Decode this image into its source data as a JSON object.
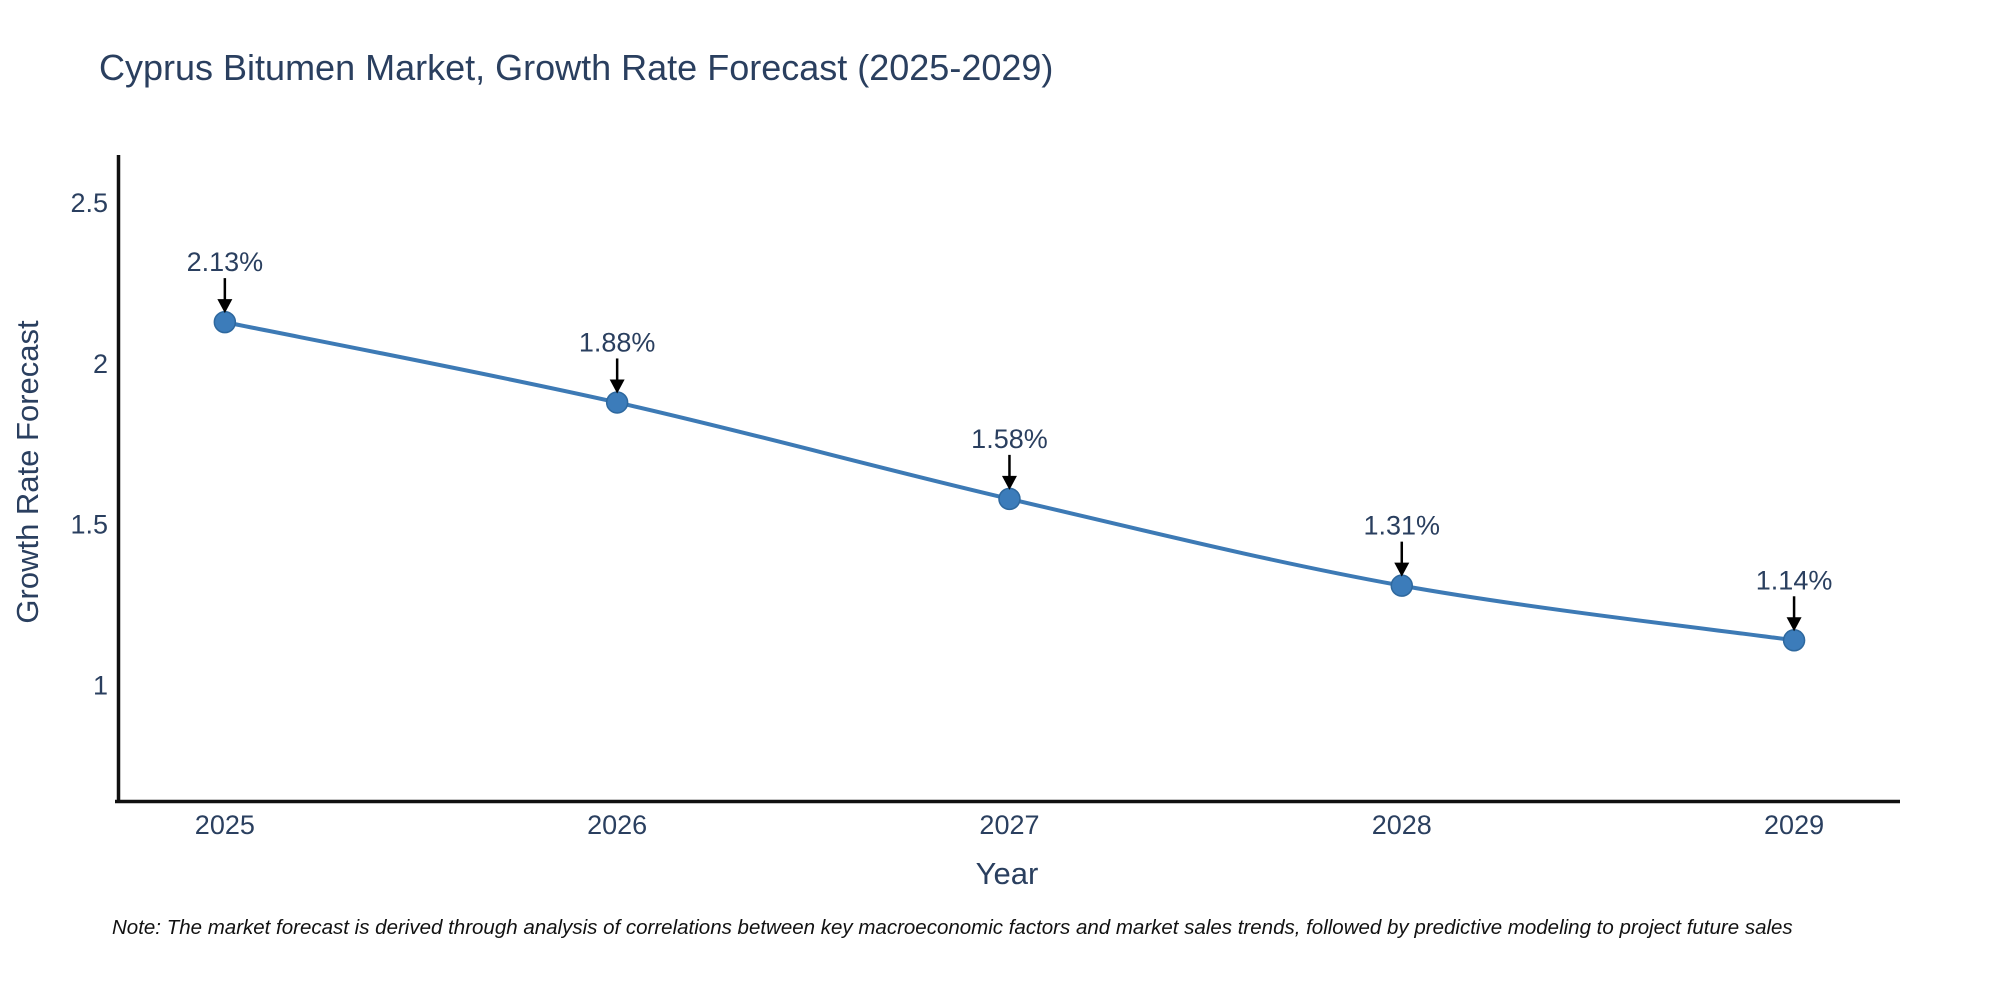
{
  "title": "Cyprus Bitumen Market, Growth Rate Forecast (2025-2029)",
  "note": {
    "text": "Note: The market forecast is derived through analysis of correlations between key macroeconomic factors and market sales trends, followed by predictive modeling to project future sales"
  },
  "chart_data": {
    "type": "line",
    "title": "Cyprus Bitumen Market, Growth Rate Forecast (2025-2029)",
    "xlabel": "Year",
    "ylabel": "Growth Rate Forecast",
    "x": [
      2025,
      2026,
      2027,
      2028,
      2029
    ],
    "values": [
      2.13,
      1.88,
      1.58,
      1.31,
      1.14
    ],
    "point_labels": [
      "2.13%",
      "1.88%",
      "1.58%",
      "1.31%",
      "1.14%"
    ],
    "x_tick_labels": [
      "2025",
      "2026",
      "2027",
      "2028",
      "2029"
    ],
    "x_tick_values": [
      2025,
      2026,
      2027,
      2028,
      2029
    ],
    "y_tick_labels": [
      "2.5",
      "2",
      "1.5",
      "1"
    ],
    "y_tick_values": [
      2.5,
      2,
      1.5,
      1
    ],
    "xlim": [
      2024.72,
      2029.27
    ],
    "ylim": [
      0.643,
      2.65
    ],
    "grid": false,
    "legend": false,
    "line_shape": "spline",
    "marker_radius": 10.5,
    "line_width": 4,
    "colors": {
      "line": "#3d7ab5",
      "marker": "#3c7cba",
      "marker_edge": "#2e689e",
      "axis_line": "#111111",
      "tick_text": "#2a3f5f",
      "annotation_text": "#2a3f5f",
      "arrow": "#000000"
    }
  }
}
